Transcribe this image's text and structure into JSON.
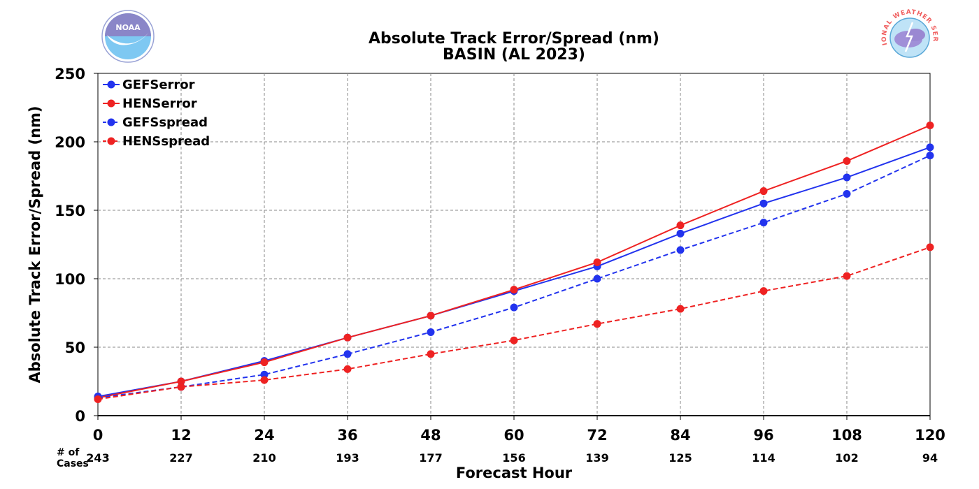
{
  "chart_data": {
    "type": "line",
    "title": "Absolute Track Error/Spread (nm)",
    "subtitle": "BASIN (AL 2023)",
    "xlabel": "Forecast Hour",
    "ylabel": "Absolute Track Error/Spread (nm)",
    "x": [
      0,
      12,
      24,
      36,
      48,
      60,
      72,
      84,
      96,
      108,
      120
    ],
    "xlim": [
      0,
      120
    ],
    "ylim": [
      0,
      250
    ],
    "yticks": [
      0,
      50,
      100,
      150,
      200,
      250
    ],
    "grid": true,
    "legend_position": "top-left",
    "cases_label": "# of\nCases",
    "cases": [
      243,
      227,
      210,
      193,
      177,
      156,
      139,
      125,
      114,
      102,
      94
    ],
    "series": [
      {
        "name": "GEFSerror",
        "color": "#2233ee",
        "dash": "solid",
        "values": [
          14,
          25,
          40,
          57,
          73,
          91,
          109,
          133,
          155,
          174,
          196
        ]
      },
      {
        "name": "HENSerror",
        "color": "#ee2222",
        "dash": "solid",
        "values": [
          13,
          25,
          39,
          57,
          73,
          92,
          112,
          139,
          164,
          186,
          212
        ]
      },
      {
        "name": "GEFSspread",
        "color": "#2233ee",
        "dash": "dashed",
        "values": [
          13,
          21,
          30,
          45,
          61,
          79,
          100,
          121,
          141,
          162,
          190
        ]
      },
      {
        "name": "HENSspread",
        "color": "#ee2222",
        "dash": "dashed",
        "values": [
          12,
          21,
          26,
          34,
          45,
          55,
          67,
          78,
          91,
          102,
          123
        ]
      }
    ]
  },
  "logos": {
    "left": {
      "icon": "noaa-logo",
      "text": "NOAA"
    },
    "right": {
      "icon": "nws-logo",
      "text": "NATIONAL WEATHER SERVICE"
    }
  }
}
